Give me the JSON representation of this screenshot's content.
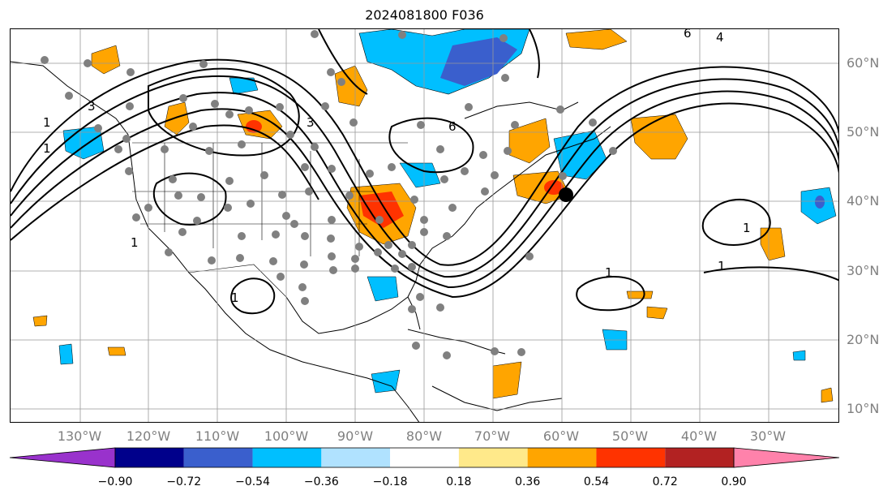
{
  "title": "2024081800 F036",
  "lat_labels": [
    "60°N",
    "50°N",
    "40°N",
    "30°N",
    "20°N",
    "10°N"
  ],
  "lon_labels": [
    "130°W",
    "120°W",
    "110°W",
    "100°W",
    "90°W",
    "80°W",
    "70°W",
    "60°W",
    "50°W",
    "40°W",
    "30°W"
  ],
  "colorbar": {
    "ticks": [
      "−0.90",
      "−0.72",
      "−0.54",
      "−0.36",
      "−0.18",
      "0.18",
      "0.36",
      "0.54",
      "0.72",
      "0.90"
    ],
    "colors": [
      "#9932cc",
      "#00008b",
      "#3a5fcd",
      "#00bfff",
      "#b0e2ff",
      "#ffffff",
      "#ffe98a",
      "#ffa500",
      "#ff3300",
      "#b22222",
      "#ff82ab"
    ]
  },
  "contour_labels": [
    "1",
    "1",
    "1",
    "1",
    "1",
    "1",
    "1",
    "6",
    "6",
    "3",
    "3",
    "4"
  ],
  "colors": {
    "land_outline": "#000000",
    "grid": "#999999",
    "station": "#808080",
    "marker": "#000000"
  }
}
